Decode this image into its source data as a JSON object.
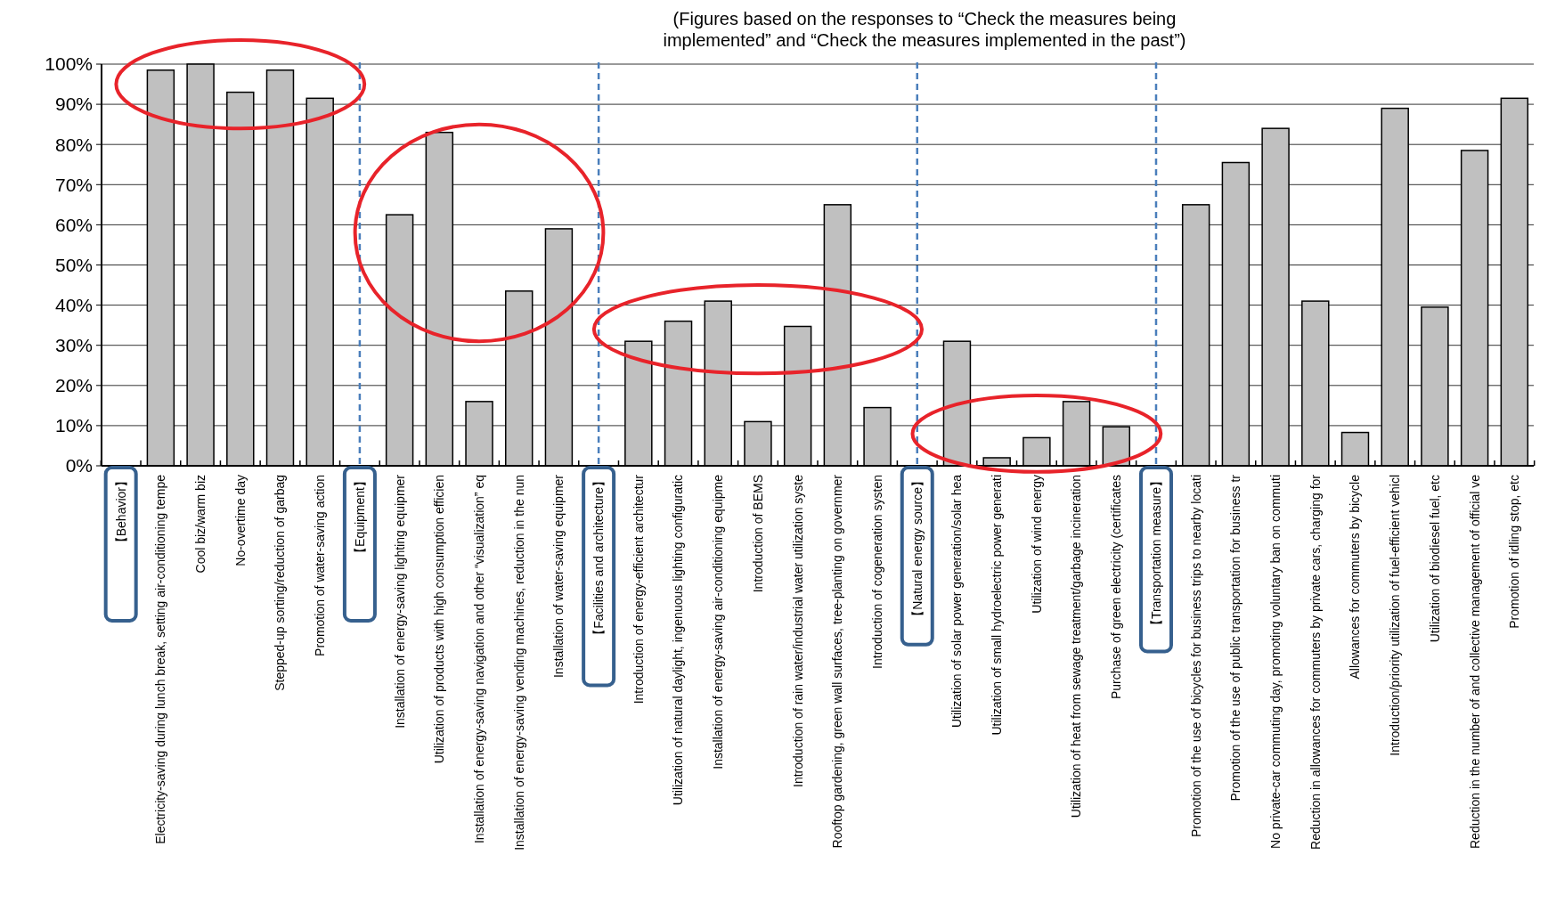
{
  "chart_data": {
    "type": "bar",
    "title": "(Figures based on the responses to “Check the measures being implemented” and “Check the measures implemented in the past”)",
    "categories": [
      "【Behavior】",
      "Electricity-saving during lunch break, setting air-conditioning tempe",
      "Cool biz/warm biz",
      "No-overtime day",
      "Stepped-up sorting/reduction of garbag",
      "Promotion of water-saving action",
      "【Equipment】",
      "Installation of energy-saving lighting equipmer",
      "Utilization of products with high consumption efficien",
      "Installation of energy-saving navigation and other “visualization” eq",
      "Installation of energy-saving vending machines, reduction in the nun",
      "Installation of water-saving equipmer",
      "【Facilities and architecture】",
      "Introduction of energy-efficient architectur",
      "Utilization of natural daylight, ingenuous lighting configuratic",
      "Installation of energy-saving air-conditioning equipme",
      "Introduction of BEMS",
      "Introduction of rain water/industrial water utilization syste",
      "Rooftop gardening, green wall surfaces, tree-planting on governmer",
      "Introduction of cogeneration systen",
      "【Natural energy source】",
      "Utilization of solar power generation/solar hea",
      "Utilization of small hydroelectric power generati",
      "Utilization of wind energy",
      "Utilization of heat from sewage treatment/garbage incineration",
      "Purchase of green electricity (certificates",
      "【Transportation measure】",
      "Promotion of the use of bicycles for business trips to nearby locati",
      "Promotion of the use of public transportation for business tr",
      "No private-car commuting day, promoting voluntary ban on commuti",
      "Reduction in allowances for commuters by private cars, charging for",
      "Allowances for commuters by bicycle",
      "Introduction/priority utilization of fuel-efficient vehicl",
      "Utilization of biodiesel fuel, etc",
      "Reduction in the number of and collective management of official ve",
      "Promotion of idling stop, etc"
    ],
    "values": [
      null,
      98.5,
      100,
      93,
      98.5,
      91.5,
      null,
      62.5,
      83,
      16,
      43.5,
      59,
      null,
      31,
      36,
      41,
      11,
      34.7,
      65,
      14.5,
      null,
      31,
      2,
      7,
      16,
      9.7,
      null,
      65,
      75.5,
      84,
      41,
      8.3,
      89,
      39.5,
      78.5,
      91.5
    ],
    "color": "#c0c0c0",
    "ylim": [
      0,
      100
    ],
    "yticks": [
      {
        "value": 0,
        "label": "0%"
      },
      {
        "value": 10,
        "label": "10%"
      },
      {
        "value": 20,
        "label": "20%"
      },
      {
        "value": 30,
        "label": "30%"
      },
      {
        "value": 40,
        "label": "40%"
      },
      {
        "value": 50,
        "label": "50%"
      },
      {
        "value": 60,
        "label": "60%"
      },
      {
        "value": 70,
        "label": "70%"
      },
      {
        "value": 80,
        "label": "80%"
      },
      {
        "value": 90,
        "label": "90%"
      },
      {
        "value": 100,
        "label": "100%"
      }
    ],
    "grid": "y",
    "ref_lines": [
      {
        "axis": "x",
        "value": "【Equipment】",
        "color": "#4a7ebb",
        "line_style": "dashed"
      },
      {
        "axis": "x",
        "value": "【Facilities and architecture】",
        "color": "#4a7ebb",
        "line_style": "dashed"
      },
      {
        "axis": "x",
        "value": "【Natural energy source】",
        "color": "#4a7ebb",
        "line_style": "dashed"
      },
      {
        "axis": "x",
        "value": "【Transportation measure】",
        "color": "#4a7ebb",
        "line_style": "dashed"
      }
    ]
  }
}
